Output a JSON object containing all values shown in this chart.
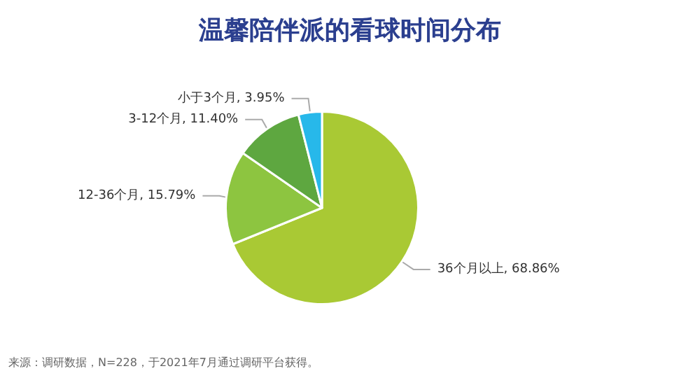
{
  "chart_data": {
    "type": "pie",
    "title": "温馨陪伴派的看球时间分布",
    "categories": [
      "36个月以上",
      "12-36个月",
      "3-12个月",
      "小于3个月"
    ],
    "values": [
      68.86,
      15.79,
      11.4,
      3.95
    ],
    "value_labels": [
      "68.86%",
      "15.79%",
      "11.40%",
      "3.95%"
    ],
    "colors": [
      "#a9c934",
      "#8dc540",
      "#5ea740",
      "#27b8ea"
    ],
    "legend": false,
    "annotations": [
      "来源：调研数据，N=228，于2021年7月通过调研平台获得。"
    ]
  }
}
